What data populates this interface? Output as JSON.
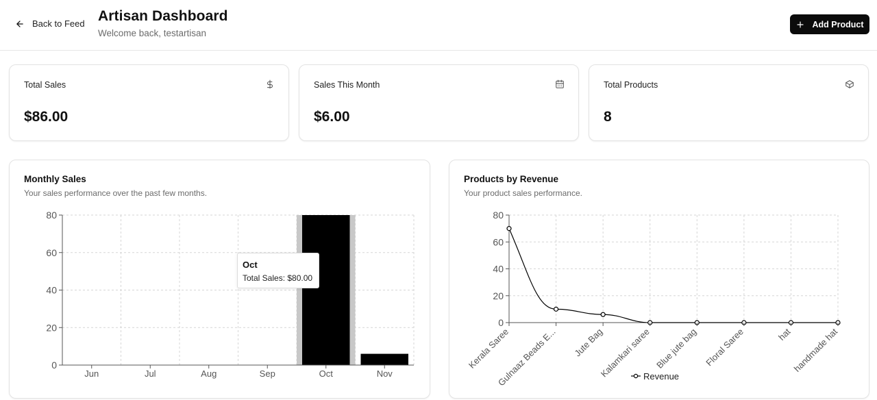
{
  "header": {
    "back_label": "Back to Feed",
    "title": "Artisan Dashboard",
    "subtitle": "Welcome back, testartisan",
    "add_label": "Add Product"
  },
  "stats": [
    {
      "label": "Total Sales",
      "value": "$86.00",
      "icon": "dollar-icon"
    },
    {
      "label": "Sales This Month",
      "value": "$6.00",
      "icon": "calendar-icon"
    },
    {
      "label": "Total Products",
      "value": "8",
      "icon": "package-icon"
    }
  ],
  "monthly": {
    "title": "Monthly Sales",
    "subtitle": "Your sales performance over the past few months.",
    "tooltip": {
      "title": "Oct",
      "text": "Total Sales: $80.00"
    }
  },
  "products": {
    "title": "Products by Revenue",
    "subtitle": "Your product sales performance.",
    "legend": "Revenue"
  },
  "chart_data": [
    {
      "type": "bar",
      "categories": [
        "Jun",
        "Jul",
        "Aug",
        "Sep",
        "Oct",
        "Nov"
      ],
      "series": [
        {
          "values": [
            0,
            0,
            0,
            0,
            80,
            6
          ]
        }
      ],
      "ylim": [
        0,
        80
      ],
      "yticks": [
        0,
        20,
        40,
        60,
        80
      ],
      "grid": true,
      "highlighted": "Oct",
      "bar_color": "#000000",
      "highlight_color": "#c8c8c8"
    },
    {
      "type": "line",
      "categories": [
        "Kerala Saree",
        "Gulnaaz Beads E...",
        "Jute Bag",
        "Kalamkari saree",
        "Blue jute bag",
        "Floral Saree",
        "hat",
        "handmade hat"
      ],
      "series": [
        {
          "name": "Revenue",
          "values": [
            70,
            10,
            6,
            0,
            0,
            0,
            0,
            0
          ]
        }
      ],
      "ylim": [
        0,
        80
      ],
      "yticks": [
        0,
        20,
        40,
        60,
        80
      ],
      "grid": true,
      "legend": "bottom",
      "line_color": "#000000"
    }
  ]
}
